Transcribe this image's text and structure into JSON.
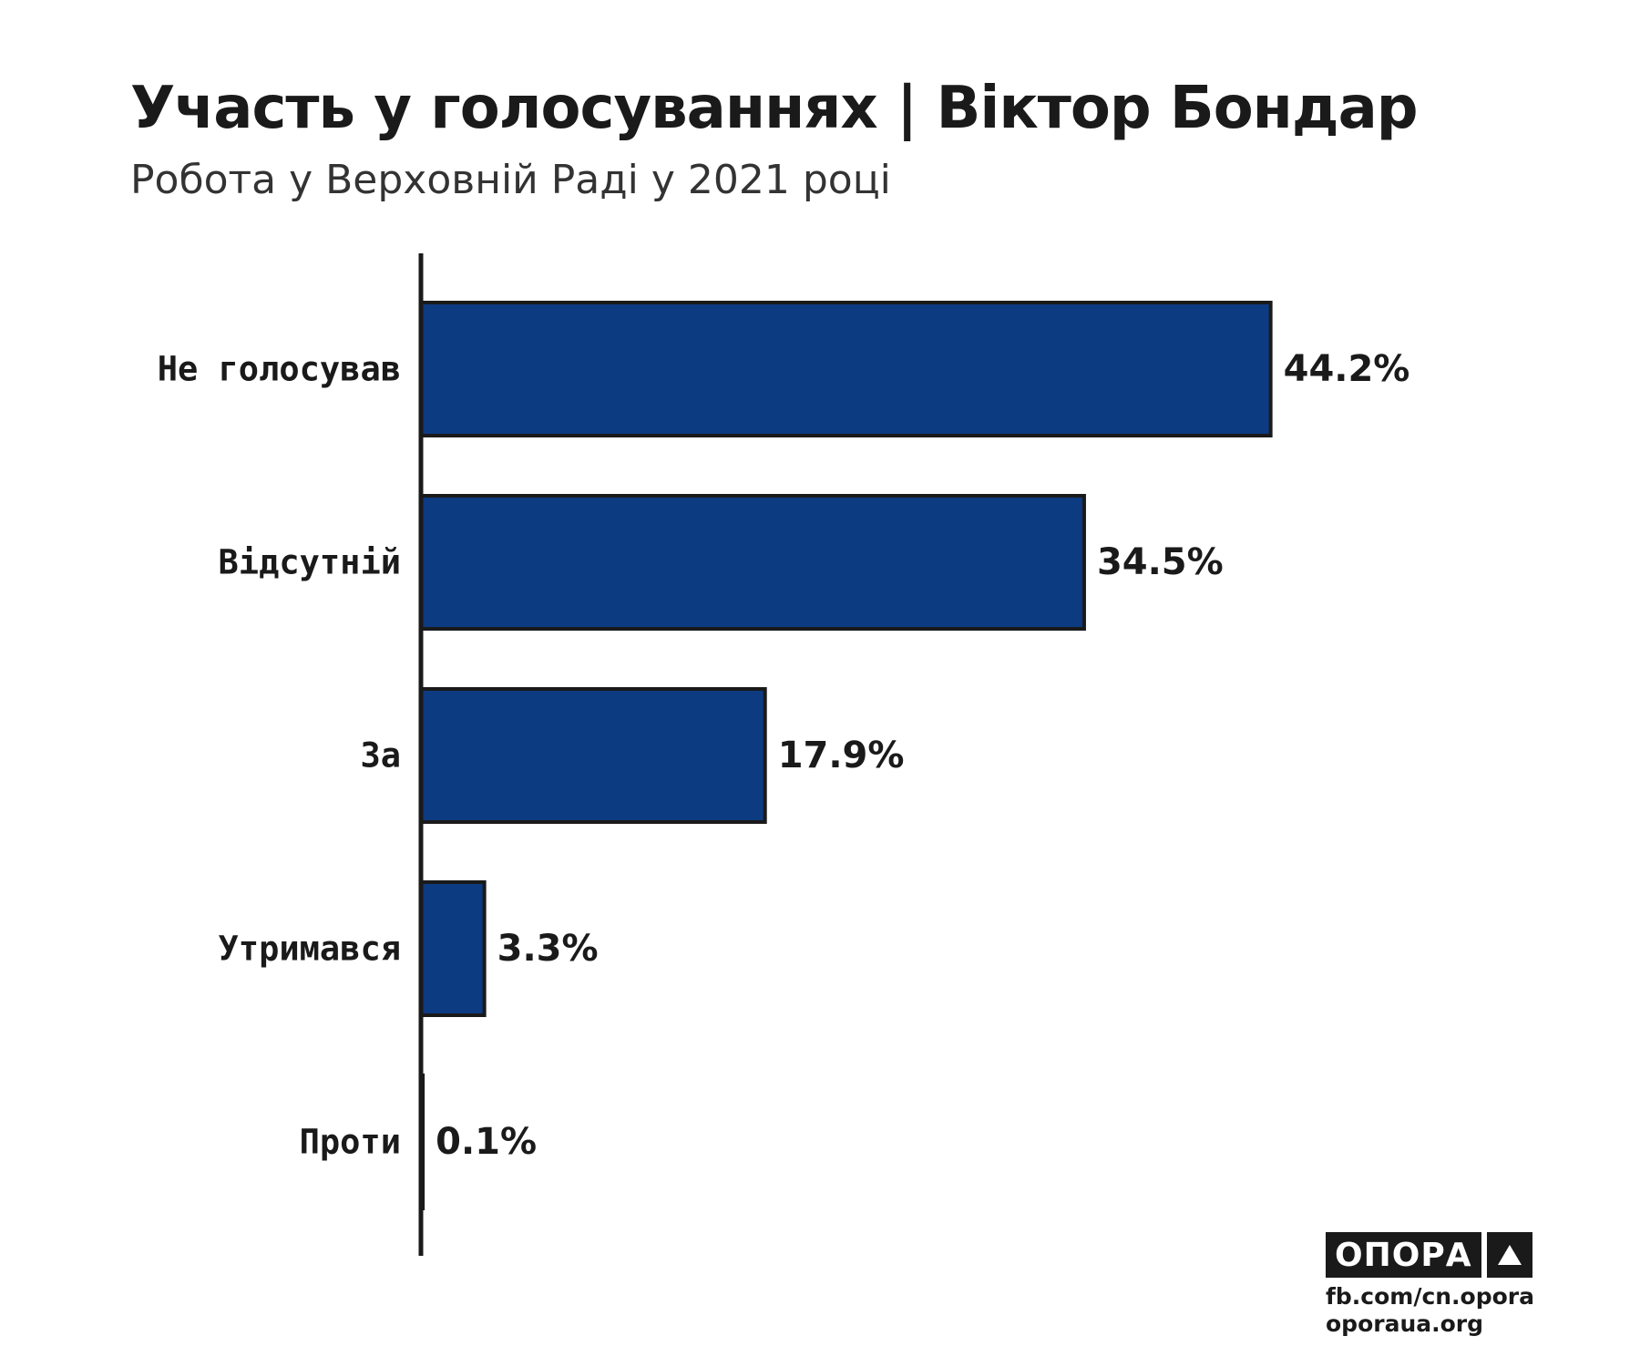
{
  "chart_data": {
    "type": "bar",
    "orientation": "horizontal",
    "title": "Участь у голосуваннях | Віктор Бондар",
    "subtitle": "Робота у Верховній Раді у 2021 році",
    "categories": [
      "Не голосував",
      "Відсутній",
      "За",
      "Утримався",
      "Проти"
    ],
    "values": [
      44.2,
      34.5,
      17.9,
      3.3,
      0.1
    ],
    "value_labels": [
      "44.2%",
      "34.5%",
      "17.9%",
      "3.3%",
      "0.1%"
    ],
    "xlim": [
      0,
      50
    ],
    "grid": false,
    "legend": "none",
    "colors": {
      "bar_fill": "#0d3b82",
      "bar_stroke": "#1a1a1a",
      "axis": "#1a1a1a",
      "text": "#1a1a1a"
    }
  },
  "branding": {
    "logo_text": "ОПОРА",
    "logo_icon": "triangle-icon",
    "links": [
      "fb.com/cn.opora",
      "oporaua.org"
    ]
  }
}
